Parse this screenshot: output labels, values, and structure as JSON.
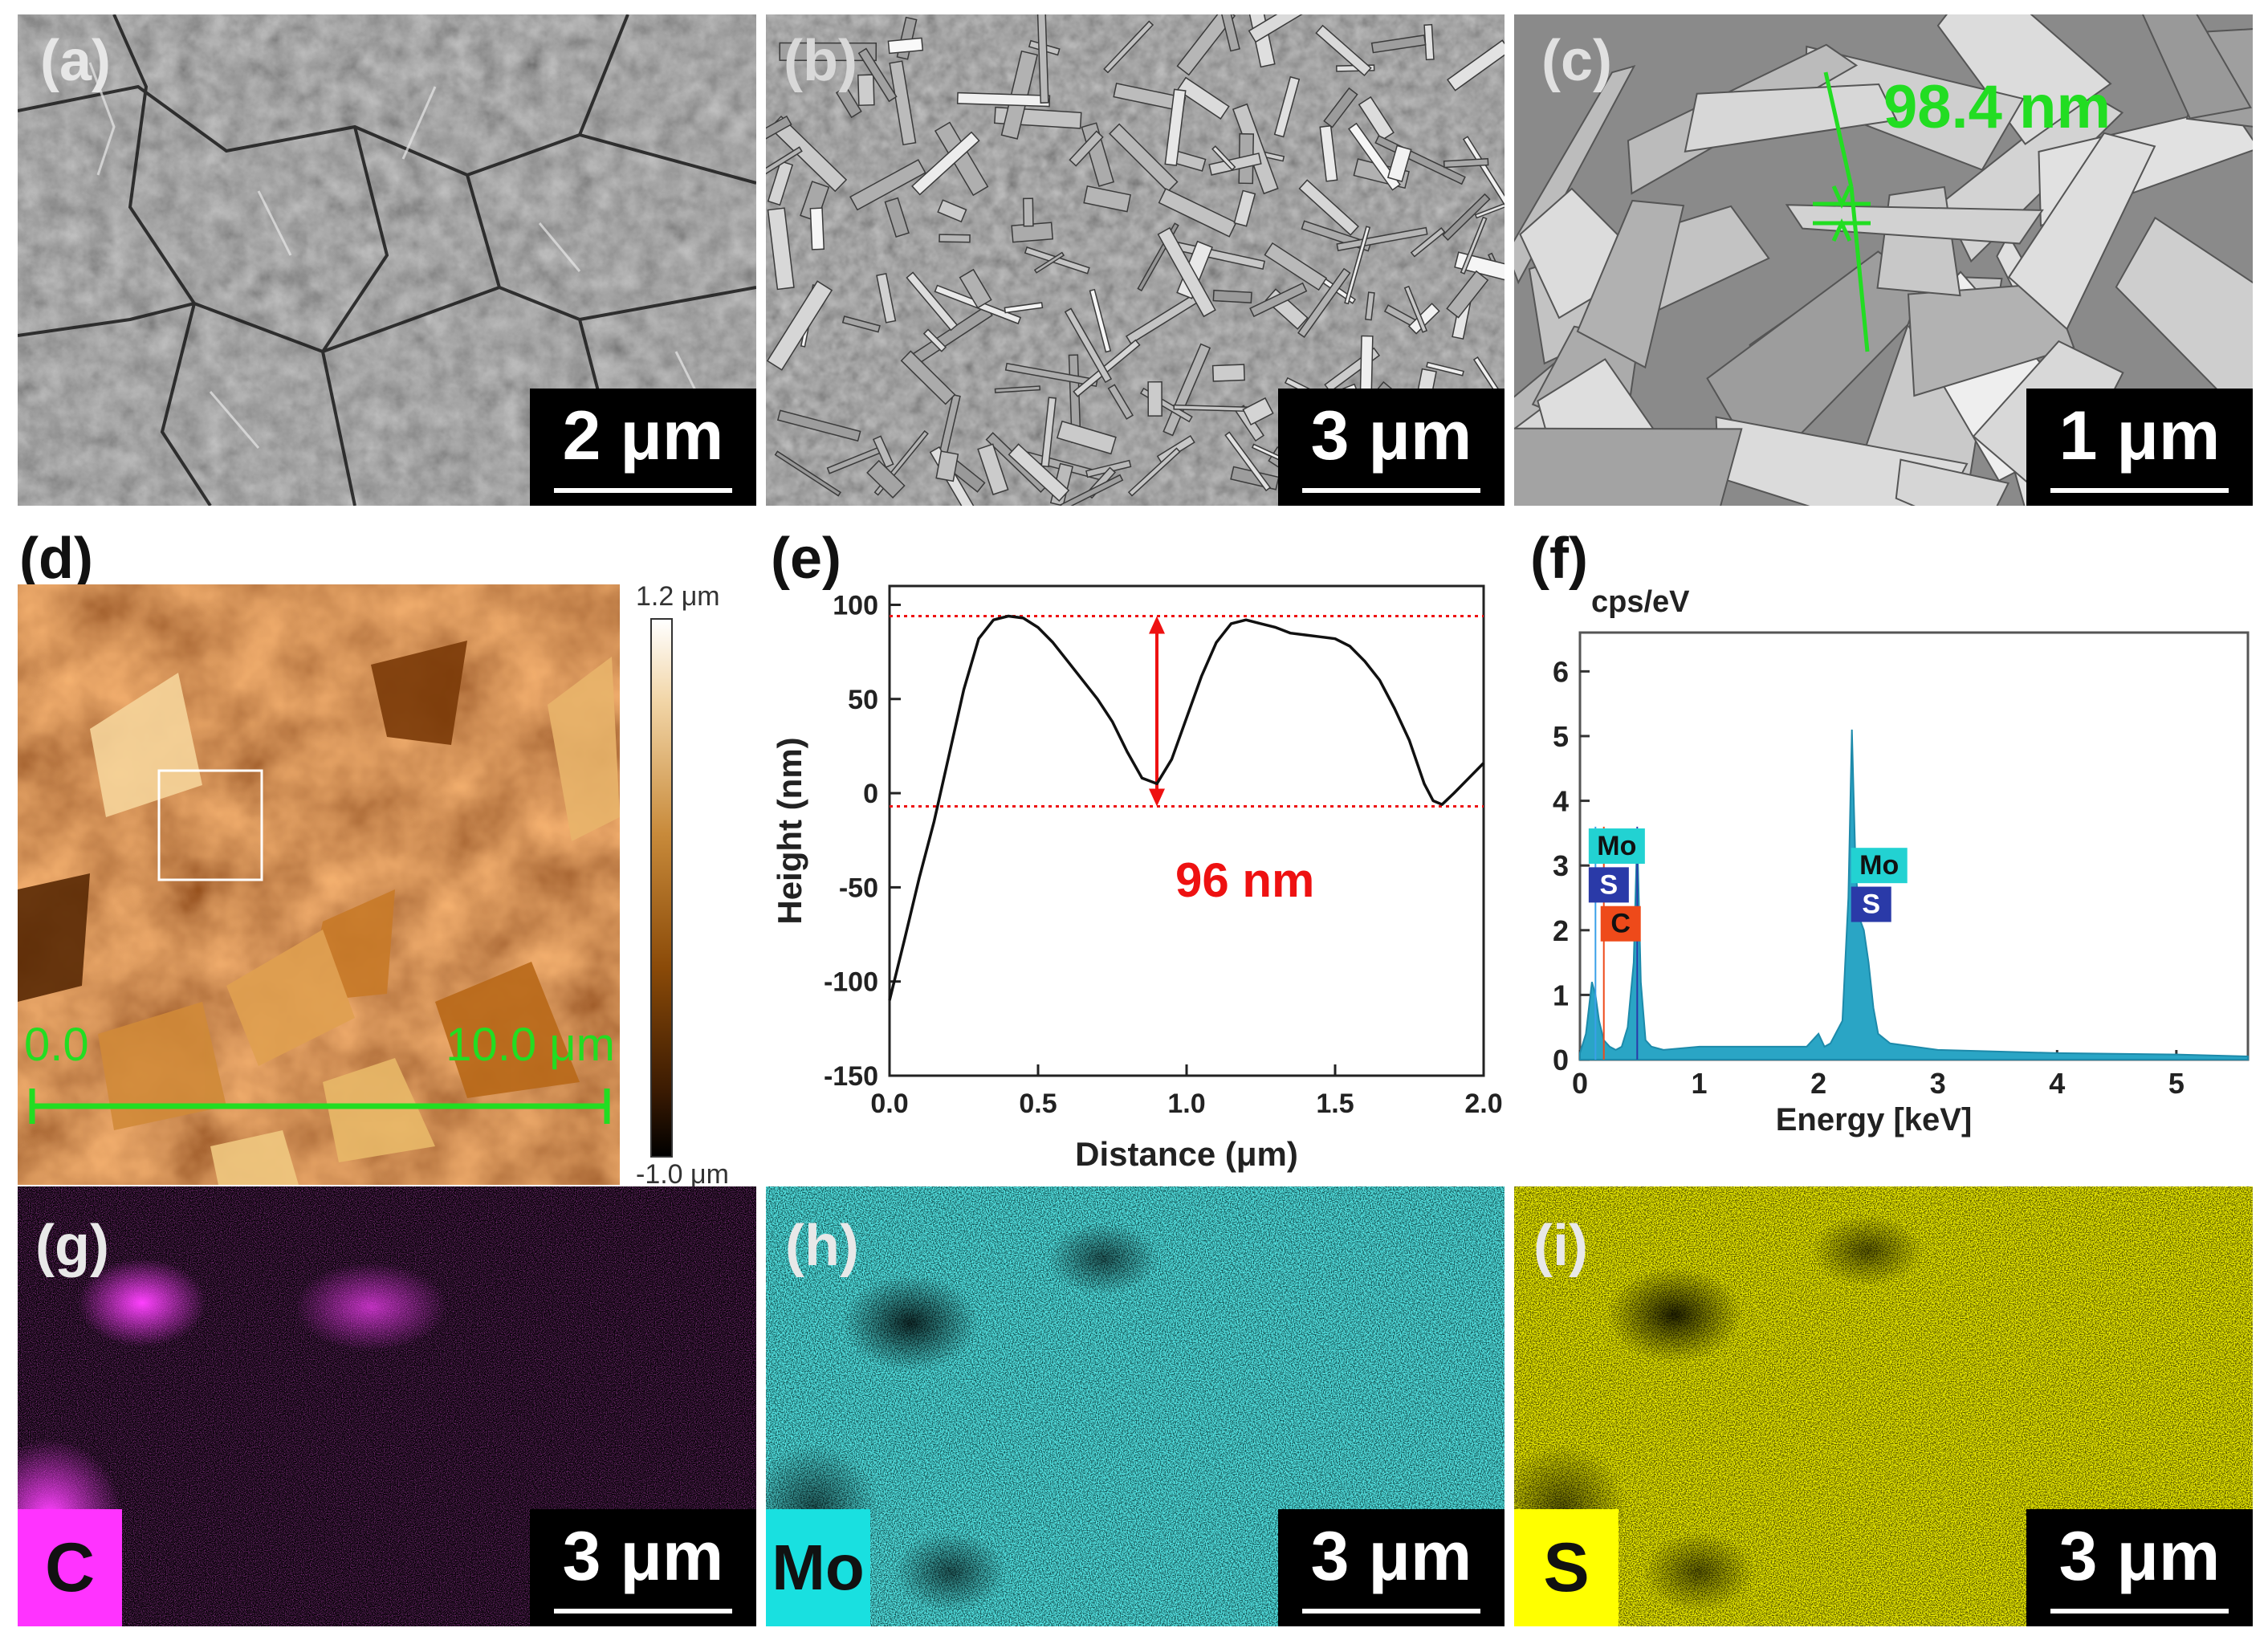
{
  "figure": {
    "panels": {
      "a": {
        "label": "(a)",
        "scale": "2 μm"
      },
      "b": {
        "label": "(b)",
        "scale": "3 μm"
      },
      "c": {
        "label": "(c)",
        "scale": "1 μm",
        "annotation": "98.4 nm"
      },
      "d": {
        "label": "(d)",
        "colorbar_max": "1.2 μm",
        "colorbar_min": "-1.0 μm",
        "axis_start": "0.0",
        "axis_end": "10.0 μm"
      },
      "e": {
        "label": "(e)",
        "annotation": "96 nm"
      },
      "f": {
        "label": "(f)",
        "ylabel": "cps/eV"
      },
      "g": {
        "label": "(g)",
        "scale": "3 μm",
        "element": "C",
        "element_color": "#ff33ff"
      },
      "h": {
        "label": "(h)",
        "scale": "3 μm",
        "element": "Mo",
        "element_color": "#19e0e0"
      },
      "i": {
        "label": "(i)",
        "scale": "3 μm",
        "element": "S",
        "element_color": "#ffff00"
      }
    },
    "colors": {
      "green": "#22dd22",
      "red": "#ee1111",
      "cyan": "#2aa5c5",
      "magenta": "#e020e0",
      "yellow": "#e8e800",
      "mo_cyan": "#22d2d2"
    }
  },
  "chart_data": [
    {
      "type": "line",
      "panel": "e",
      "xlabel": "Distance (μm)",
      "ylabel": "Height (nm)",
      "xlim": [
        0.0,
        2.0
      ],
      "ylim": [
        -150,
        110
      ],
      "xticks": [
        "0.0",
        "0.5",
        "1.0",
        "1.5",
        "2.0"
      ],
      "yticks": [
        "-150",
        "-100",
        "-50",
        "0",
        "50",
        "100"
      ],
      "reference_lines": [
        94,
        -7
      ],
      "series": [
        {
          "x": [
            0.0,
            0.05,
            0.1,
            0.15,
            0.2,
            0.25,
            0.3,
            0.35,
            0.4,
            0.45,
            0.5,
            0.55,
            0.6,
            0.65,
            0.7,
            0.75,
            0.8,
            0.85,
            0.9,
            0.95,
            1.0,
            1.05,
            1.1,
            1.15,
            1.2,
            1.25,
            1.3,
            1.35,
            1.4,
            1.45,
            1.5,
            1.55,
            1.6,
            1.65,
            1.7,
            1.75,
            1.8,
            1.83,
            1.86,
            1.9,
            1.95,
            2.0
          ],
          "y": [
            -110,
            -78,
            -45,
            -15,
            20,
            55,
            82,
            92,
            94,
            93,
            88,
            80,
            70,
            60,
            50,
            38,
            22,
            8,
            5,
            18,
            40,
            62,
            80,
            90,
            92,
            90,
            88,
            85,
            84,
            83,
            82,
            78,
            70,
            60,
            45,
            28,
            5,
            -4,
            -6,
            0,
            8,
            16
          ]
        }
      ]
    },
    {
      "type": "area",
      "panel": "f",
      "xlabel": "Energy [keV]",
      "ylabel": "cps/eV",
      "xlim": [
        0,
        5.6
      ],
      "ylim": [
        0,
        6.6
      ],
      "xticks": [
        "0",
        "1",
        "2",
        "3",
        "4",
        "5"
      ],
      "yticks": [
        "0",
        "1",
        "2",
        "3",
        "4",
        "5",
        "6"
      ],
      "peak_labels": [
        {
          "text": "Mo",
          "energy": 0.1,
          "level": 3.3,
          "color": "#22d2d2"
        },
        {
          "text": "S",
          "energy": 0.1,
          "level": 2.7,
          "color": "#2a3aa8"
        },
        {
          "text": "C",
          "energy": 0.2,
          "level": 2.1,
          "color": "#ee4a1a"
        },
        {
          "text": "Mo",
          "energy": 2.3,
          "level": 3.0,
          "color": "#22d2d2"
        },
        {
          "text": "S",
          "energy": 2.3,
          "level": 2.4,
          "color": "#2a3aa8"
        }
      ],
      "series": [
        {
          "x": [
            0.0,
            0.05,
            0.1,
            0.13,
            0.16,
            0.2,
            0.25,
            0.3,
            0.35,
            0.4,
            0.45,
            0.48,
            0.51,
            0.55,
            0.6,
            0.7,
            1.0,
            1.5,
            1.9,
            2.0,
            2.05,
            2.1,
            2.2,
            2.25,
            2.28,
            2.31,
            2.34,
            2.38,
            2.42,
            2.46,
            2.5,
            2.6,
            3.0,
            4.0,
            5.0,
            5.6
          ],
          "y": [
            0.1,
            0.4,
            1.2,
            1.0,
            0.6,
            0.3,
            0.2,
            0.15,
            0.2,
            0.5,
            1.5,
            3.5,
            1.2,
            0.3,
            0.2,
            0.15,
            0.2,
            0.2,
            0.2,
            0.4,
            0.2,
            0.25,
            0.6,
            2.5,
            5.1,
            3.0,
            2.2,
            2.0,
            1.5,
            0.8,
            0.4,
            0.25,
            0.15,
            0.1,
            0.08,
            0.05
          ]
        }
      ]
    }
  ]
}
